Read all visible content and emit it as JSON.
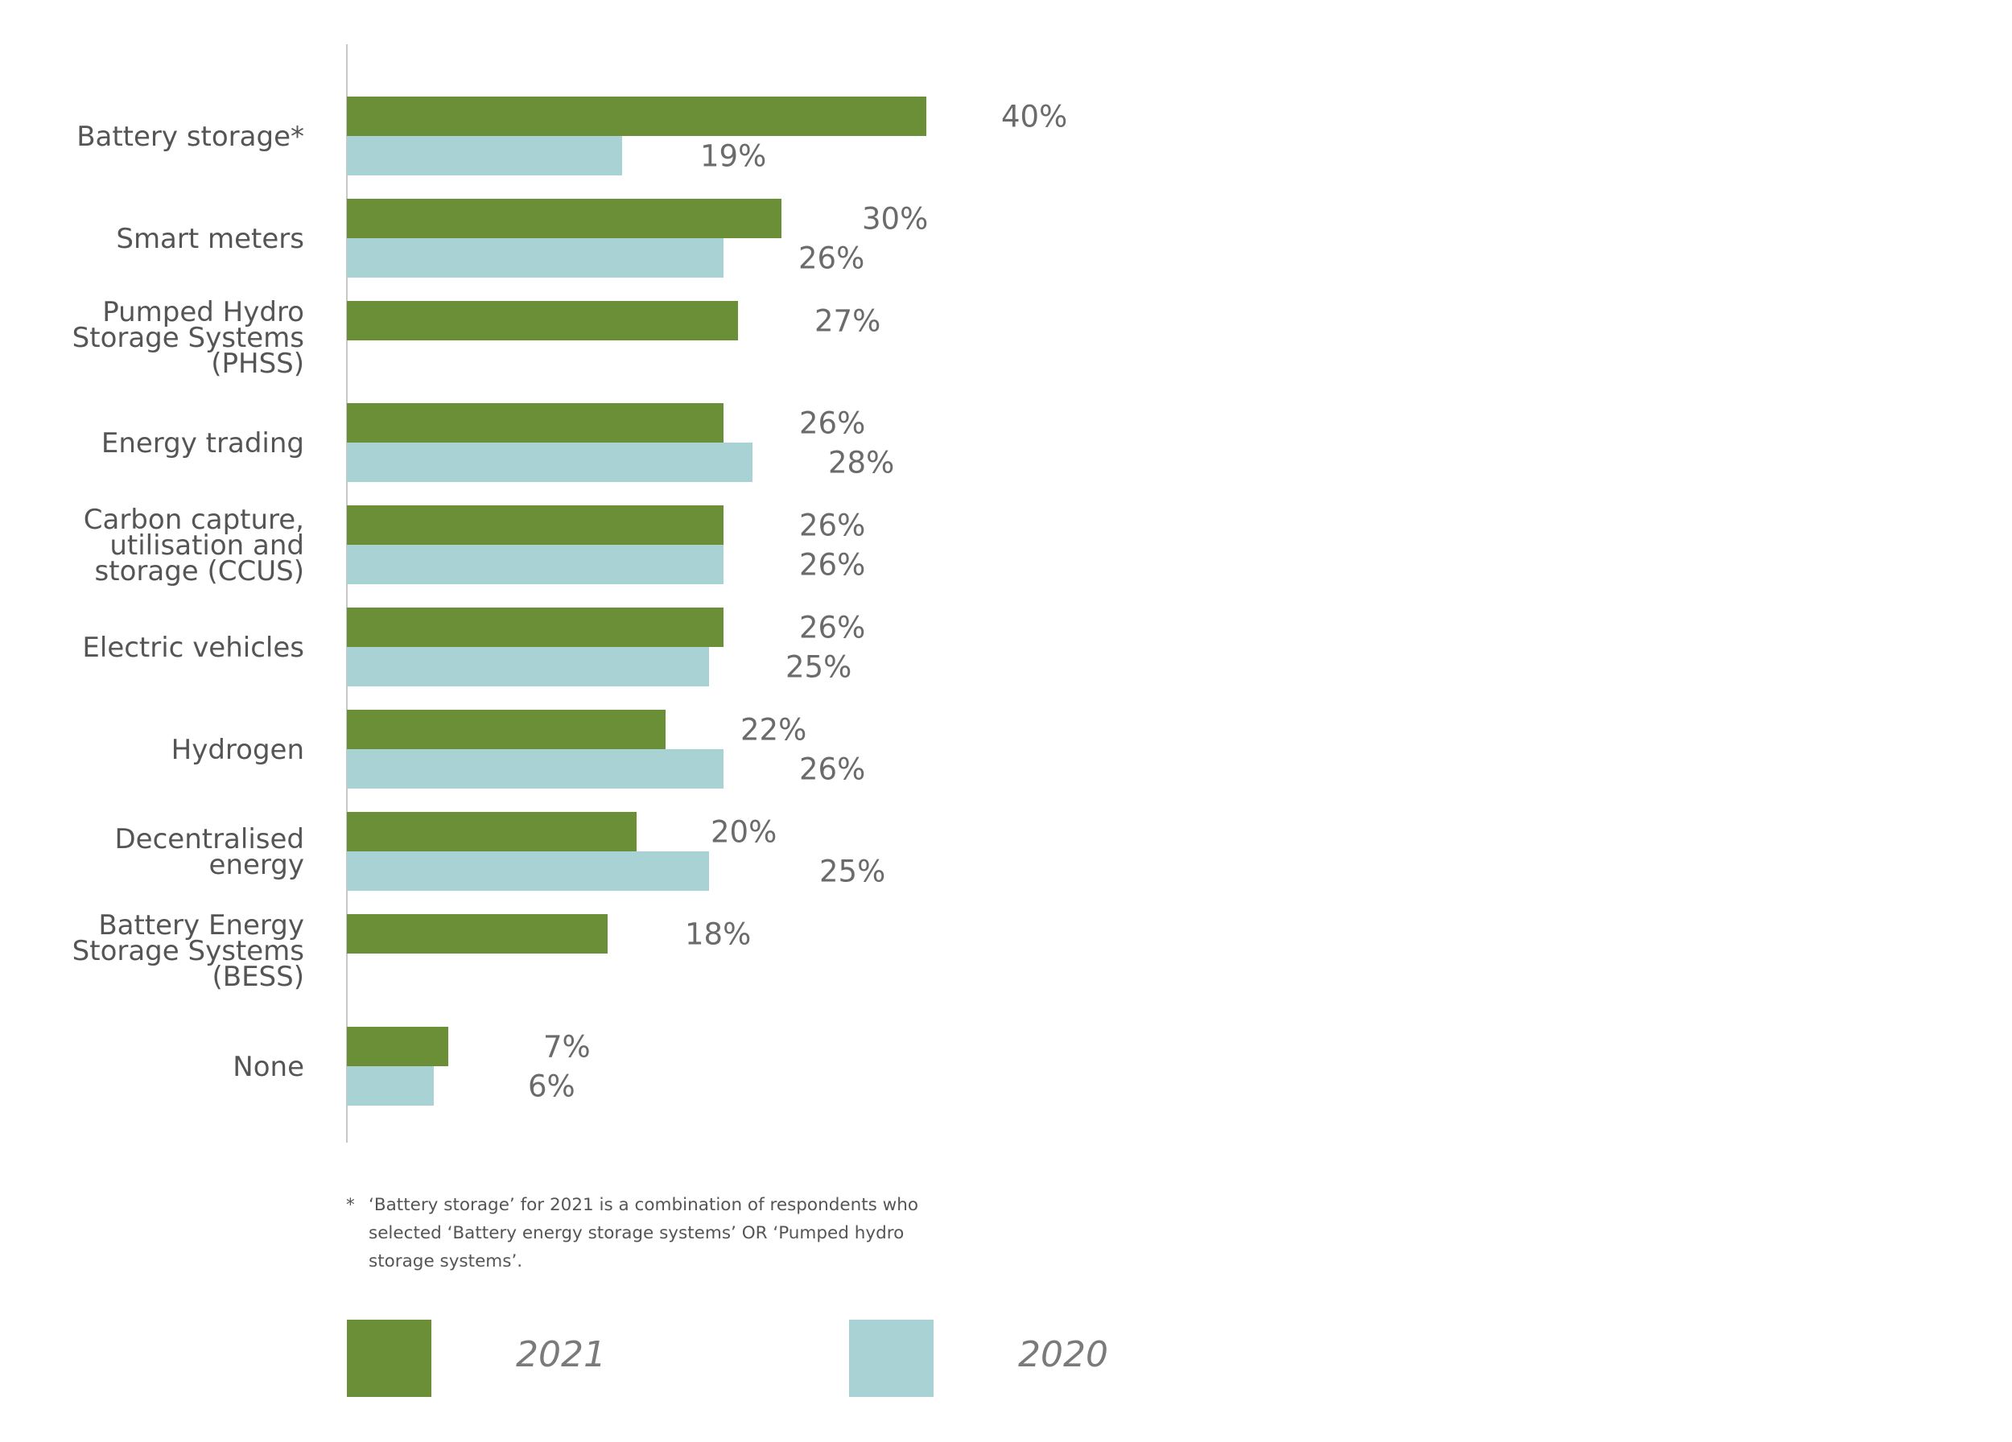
{
  "colors": {
    "series_2021": "#6a8f37",
    "series_2020": "#a9d2d4",
    "axis": "#c8c8c8",
    "label_text": "#555555",
    "value_text": "#6b6b6b"
  },
  "chart_data": {
    "type": "bar",
    "orientation": "horizontal",
    "title": "",
    "xlabel": "",
    "ylabel": "",
    "xlim": [
      0,
      40
    ],
    "grid": false,
    "categories": [
      "Battery storage*",
      "Smart meters",
      "Pumped Hydro Storage Systems (PHSS)",
      "Energy trading",
      "Carbon capture, utilisation and storage (CCUS)",
      "Electric vehicles",
      "Hydrogen",
      "Decentralised energy",
      "Battery Energy Storage Systems (BESS)",
      "None"
    ],
    "category_lines": [
      [
        "Battery storage*"
      ],
      [
        "Smart meters"
      ],
      [
        "Pumped Hydro",
        "Storage Systems",
        "(PHSS)"
      ],
      [
        "Energy trading"
      ],
      [
        "Carbon capture,",
        "utilisation and",
        "storage (CCUS)"
      ],
      [
        "Electric vehicles"
      ],
      [
        "Hydrogen"
      ],
      [
        "Decentralised",
        "energy"
      ],
      [
        "Battery Energy",
        "Storage Systems",
        "(BESS)"
      ],
      [
        "None"
      ]
    ],
    "series": [
      {
        "name": "2021",
        "values": [
          40,
          30,
          27,
          26,
          26,
          26,
          22,
          20,
          18,
          7
        ],
        "labels": [
          "40%",
          "30%",
          "27%",
          "26%",
          "26%",
          "26%",
          "22%",
          "20%",
          "18%",
          "7%"
        ]
      },
      {
        "name": "2020",
        "values": [
          19,
          26,
          null,
          28,
          26,
          25,
          26,
          25,
          null,
          6
        ],
        "labels": [
          "19%",
          "26%",
          null,
          "28%",
          "26%",
          "25%",
          "26%",
          "25%",
          null,
          "6%"
        ]
      }
    ],
    "legend_position": "bottom"
  },
  "footnote": {
    "marker": "*",
    "text": "‘Battery storage’ for 2021 is a combination of respondents who selected ‘Battery energy storage systems’ OR ‘Pumped hydro storage systems’."
  },
  "legend": {
    "items": [
      {
        "label": "2021",
        "color": "#6a8f37"
      },
      {
        "label": "2020",
        "color": "#a9d2d4"
      }
    ]
  }
}
